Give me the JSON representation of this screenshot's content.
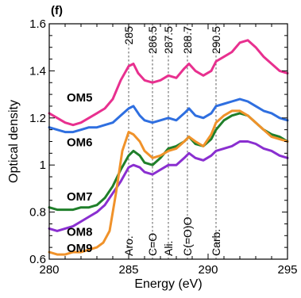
{
  "chart_data": {
    "type": "line",
    "panel_label": "(f)",
    "xlabel": "Energy (eV)",
    "ylabel": "Optical density",
    "xlim": [
      280,
      295
    ],
    "ylim": [
      0.6,
      1.6
    ],
    "x_ticks": [
      "280",
      "285",
      "290",
      "295"
    ],
    "y_ticks": [
      "0.6",
      "0.8",
      "1",
      "1.2",
      "1.4",
      "1.6"
    ],
    "grid": false,
    "peak_markers": [
      {
        "x": 285.0,
        "top_label": "285",
        "bottom_label": "Aro."
      },
      {
        "x": 286.5,
        "top_label": "286.5",
        "bottom_label": "C=O"
      },
      {
        "x": 287.5,
        "top_label": "287.5",
        "bottom_label": "Ali."
      },
      {
        "x": 288.7,
        "top_label": "288.7",
        "bottom_label": "C(=O)O"
      },
      {
        "x": 290.5,
        "top_label": "290.5",
        "bottom_label": "Carb."
      }
    ],
    "series": [
      {
        "name": "OM5",
        "color": "#e8308f",
        "points": [
          [
            280.0,
            1.22
          ],
          [
            280.5,
            1.2
          ],
          [
            281.0,
            1.18
          ],
          [
            281.5,
            1.17
          ],
          [
            282.0,
            1.18
          ],
          [
            282.5,
            1.2
          ],
          [
            283.0,
            1.22
          ],
          [
            283.5,
            1.24
          ],
          [
            284.0,
            1.28
          ],
          [
            284.5,
            1.36
          ],
          [
            285.0,
            1.42
          ],
          [
            285.3,
            1.43
          ],
          [
            285.6,
            1.39
          ],
          [
            286.0,
            1.36
          ],
          [
            286.5,
            1.35
          ],
          [
            287.0,
            1.36
          ],
          [
            287.5,
            1.38
          ],
          [
            288.0,
            1.37
          ],
          [
            288.5,
            1.41
          ],
          [
            288.8,
            1.43
          ],
          [
            289.2,
            1.4
          ],
          [
            289.7,
            1.38
          ],
          [
            290.2,
            1.4
          ],
          [
            290.5,
            1.44
          ],
          [
            291.0,
            1.46
          ],
          [
            291.5,
            1.48
          ],
          [
            292.0,
            1.52
          ],
          [
            292.5,
            1.53
          ],
          [
            293.0,
            1.5
          ],
          [
            293.5,
            1.46
          ],
          [
            294.0,
            1.43
          ],
          [
            294.5,
            1.4
          ],
          [
            295.0,
            1.39
          ]
        ]
      },
      {
        "name": "OM6",
        "color": "#2f6fe0",
        "points": [
          [
            280.0,
            1.16
          ],
          [
            280.5,
            1.15
          ],
          [
            281.0,
            1.14
          ],
          [
            281.5,
            1.14
          ],
          [
            282.0,
            1.15
          ],
          [
            282.5,
            1.16
          ],
          [
            283.0,
            1.16
          ],
          [
            283.5,
            1.17
          ],
          [
            284.0,
            1.18
          ],
          [
            284.5,
            1.21
          ],
          [
            285.0,
            1.24
          ],
          [
            285.3,
            1.25
          ],
          [
            285.7,
            1.21
          ],
          [
            286.0,
            1.19
          ],
          [
            286.5,
            1.18
          ],
          [
            287.0,
            1.19
          ],
          [
            287.5,
            1.2
          ],
          [
            288.0,
            1.19
          ],
          [
            288.5,
            1.22
          ],
          [
            288.8,
            1.24
          ],
          [
            289.2,
            1.21
          ],
          [
            289.7,
            1.2
          ],
          [
            290.2,
            1.22
          ],
          [
            290.5,
            1.25
          ],
          [
            291.0,
            1.26
          ],
          [
            291.5,
            1.27
          ],
          [
            292.0,
            1.28
          ],
          [
            292.5,
            1.27
          ],
          [
            293.0,
            1.25
          ],
          [
            293.5,
            1.23
          ],
          [
            294.0,
            1.22
          ],
          [
            294.5,
            1.2
          ],
          [
            295.0,
            1.19
          ]
        ]
      },
      {
        "name": "OM7",
        "color": "#1f7f2a",
        "points": [
          [
            280.0,
            0.82
          ],
          [
            280.5,
            0.81
          ],
          [
            281.0,
            0.81
          ],
          [
            281.5,
            0.81
          ],
          [
            282.0,
            0.82
          ],
          [
            282.5,
            0.82
          ],
          [
            283.0,
            0.83
          ],
          [
            283.5,
            0.86
          ],
          [
            284.0,
            0.91
          ],
          [
            284.5,
            0.98
          ],
          [
            285.0,
            1.04
          ],
          [
            285.3,
            1.06
          ],
          [
            285.7,
            1.04
          ],
          [
            286.0,
            1.01
          ],
          [
            286.5,
            1.0
          ],
          [
            287.0,
            1.03
          ],
          [
            287.5,
            1.07
          ],
          [
            288.0,
            1.08
          ],
          [
            288.5,
            1.1
          ],
          [
            288.8,
            1.12
          ],
          [
            289.2,
            1.09
          ],
          [
            289.7,
            1.08
          ],
          [
            290.2,
            1.11
          ],
          [
            290.5,
            1.15
          ],
          [
            291.0,
            1.19
          ],
          [
            291.5,
            1.21
          ],
          [
            292.0,
            1.22
          ],
          [
            292.5,
            1.21
          ],
          [
            293.0,
            1.18
          ],
          [
            293.5,
            1.15
          ],
          [
            294.0,
            1.13
          ],
          [
            294.5,
            1.12
          ],
          [
            295.0,
            1.1
          ]
        ]
      },
      {
        "name": "OM8",
        "color": "#8a2fd0",
        "points": [
          [
            280.0,
            0.73
          ],
          [
            280.5,
            0.72
          ],
          [
            281.0,
            0.73
          ],
          [
            281.5,
            0.74
          ],
          [
            282.0,
            0.76
          ],
          [
            282.5,
            0.78
          ],
          [
            283.0,
            0.8
          ],
          [
            283.5,
            0.83
          ],
          [
            284.0,
            0.88
          ],
          [
            284.5,
            0.93
          ],
          [
            285.0,
            0.99
          ],
          [
            285.3,
            1.0
          ],
          [
            285.7,
            0.99
          ],
          [
            286.0,
            0.97
          ],
          [
            286.5,
            0.96
          ],
          [
            287.0,
            0.98
          ],
          [
            287.5,
            1.0
          ],
          [
            288.0,
            1.0
          ],
          [
            288.5,
            1.03
          ],
          [
            288.8,
            1.05
          ],
          [
            289.2,
            1.03
          ],
          [
            289.7,
            1.02
          ],
          [
            290.2,
            1.04
          ],
          [
            290.5,
            1.06
          ],
          [
            291.0,
            1.07
          ],
          [
            291.5,
            1.08
          ],
          [
            292.0,
            1.1
          ],
          [
            292.5,
            1.1
          ],
          [
            293.0,
            1.09
          ],
          [
            293.5,
            1.07
          ],
          [
            294.0,
            1.06
          ],
          [
            294.5,
            1.04
          ],
          [
            295.0,
            1.03
          ]
        ]
      },
      {
        "name": "OM9",
        "color": "#f0922a",
        "points": [
          [
            280.0,
            0.63
          ],
          [
            280.5,
            0.62
          ],
          [
            281.0,
            0.62
          ],
          [
            281.5,
            0.63
          ],
          [
            282.0,
            0.63
          ],
          [
            282.5,
            0.64
          ],
          [
            283.0,
            0.65
          ],
          [
            283.4,
            0.67
          ],
          [
            283.8,
            0.72
          ],
          [
            284.2,
            0.88
          ],
          [
            284.6,
            1.06
          ],
          [
            285.0,
            1.14
          ],
          [
            285.3,
            1.13
          ],
          [
            285.7,
            1.1
          ],
          [
            286.0,
            1.06
          ],
          [
            286.5,
            1.03
          ],
          [
            287.0,
            1.04
          ],
          [
            287.5,
            1.06
          ],
          [
            288.0,
            1.07
          ],
          [
            288.5,
            1.1
          ],
          [
            288.8,
            1.12
          ],
          [
            289.2,
            1.1
          ],
          [
            289.7,
            1.08
          ],
          [
            290.2,
            1.13
          ],
          [
            290.5,
            1.18
          ],
          [
            291.0,
            1.21
          ],
          [
            291.5,
            1.23
          ],
          [
            292.0,
            1.23
          ],
          [
            292.5,
            1.21
          ],
          [
            293.0,
            1.18
          ],
          [
            293.5,
            1.15
          ],
          [
            294.0,
            1.12
          ],
          [
            294.5,
            1.11
          ],
          [
            295.0,
            1.1
          ]
        ]
      }
    ],
    "series_label_positions": [
      {
        "series": "OM5",
        "x": 281.3,
        "y": 1.27
      },
      {
        "series": "OM6",
        "x": 281.3,
        "y": 1.08
      },
      {
        "series": "OM7",
        "x": 281.3,
        "y": 0.85
      },
      {
        "series": "OM8",
        "x": 281.3,
        "y": 0.7
      },
      {
        "series": "OM9",
        "x": 281.3,
        "y": 0.63
      }
    ]
  }
}
